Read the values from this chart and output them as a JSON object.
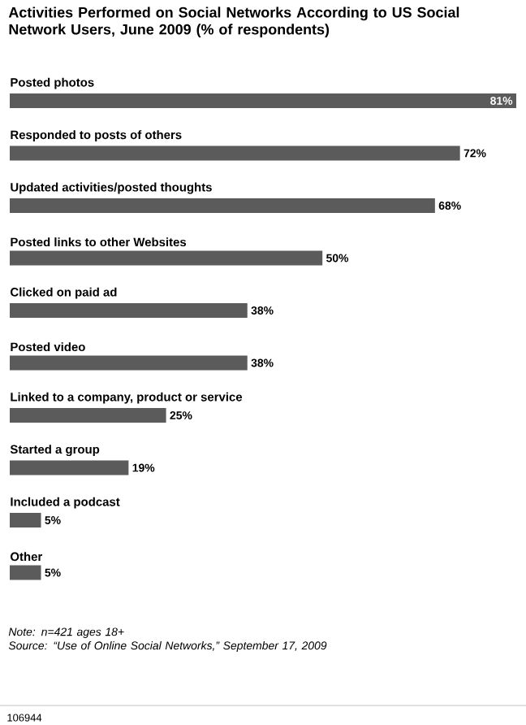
{
  "chart_data": {
    "type": "bar",
    "orientation": "horizontal",
    "title": "Activities Performed on Social Networks According to US Social Network Users, June 2009 (% of respondents)",
    "categories": [
      "Posted photos",
      "Responded to posts of others",
      "Updated activities/posted thoughts",
      "Posted links to other Websites",
      "Clicked on paid ad",
      "Posted video",
      "Linked to a company, product or service",
      "Started a group",
      "Included a podcast",
      "Other"
    ],
    "values": [
      81,
      72,
      68,
      50,
      38,
      38,
      25,
      19,
      5,
      5
    ],
    "value_labels": [
      "81%",
      "72%",
      "68%",
      "50%",
      "38%",
      "38%",
      "25%",
      "19%",
      "5%",
      "5%"
    ],
    "color": "#5b5b5b",
    "annotations": [
      "Note: n=421 ages 18+",
      "Source: “Use of Online Social Networks,” September 17, 2009",
      "106944"
    ]
  }
}
